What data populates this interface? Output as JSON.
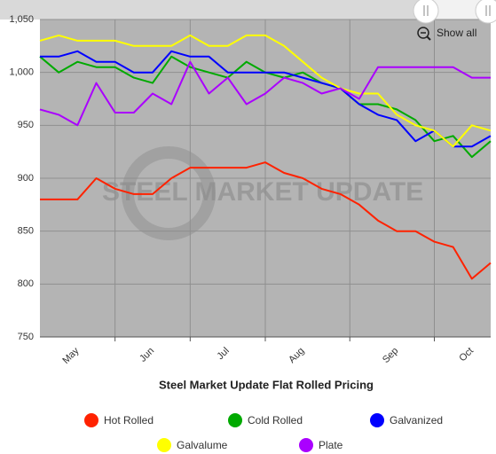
{
  "chart_data": {
    "type": "line",
    "title": "Steel Market Update Flat Rolled Pricing",
    "watermark": "STEEL MARKET UPDATE",
    "button": "Show all",
    "categories": [
      null,
      null,
      "May",
      null,
      null,
      null,
      "Jun",
      null,
      null,
      null,
      "Jul",
      null,
      null,
      null,
      "Aug",
      null,
      null,
      null,
      null,
      "Sep",
      null,
      null,
      null,
      "Oct",
      null
    ],
    "series": [
      {
        "name": "Hot Rolled",
        "color": "#ff2200",
        "values": [
          880,
          880,
          880,
          900,
          890,
          885,
          885,
          900,
          910,
          910,
          910,
          910,
          915,
          905,
          900,
          890,
          885,
          875,
          860,
          850,
          850,
          840,
          835,
          805,
          820
        ]
      },
      {
        "name": "Cold Rolled",
        "color": "#00aa00",
        "values": [
          1015,
          1000,
          1010,
          1005,
          1005,
          995,
          990,
          1015,
          1005,
          1000,
          995,
          1010,
          1000,
          995,
          1000,
          990,
          985,
          970,
          970,
          965,
          955,
          935,
          940,
          920,
          935
        ]
      },
      {
        "name": "Galvanized",
        "color": "#0000ff",
        "values": [
          1015,
          1015,
          1020,
          1010,
          1010,
          1000,
          1000,
          1020,
          1015,
          1015,
          1000,
          1000,
          1000,
          1000,
          995,
          990,
          985,
          970,
          960,
          955,
          935,
          945,
          930,
          930,
          940
        ]
      },
      {
        "name": "Galvalume",
        "color": "#ffff00",
        "values": [
          1030,
          1035,
          1030,
          1030,
          1030,
          1025,
          1025,
          1025,
          1035,
          1025,
          1025,
          1035,
          1035,
          1025,
          1010,
          995,
          985,
          980,
          980,
          960,
          950,
          945,
          930,
          950,
          945
        ]
      },
      {
        "name": "Plate",
        "color": "#aa00ff",
        "values": [
          965,
          960,
          950,
          990,
          962,
          962,
          980,
          970,
          1010,
          980,
          995,
          970,
          980,
          995,
          990,
          980,
          985,
          975,
          1005,
          1005,
          1005,
          1005,
          1005,
          995,
          995
        ]
      }
    ],
    "ylim": [
      750,
      1050
    ],
    "yticks": [
      750,
      800,
      850,
      900,
      950,
      {
        "value": 1000,
        "label": "1,000"
      },
      {
        "value": 1050,
        "label": "1,050"
      }
    ],
    "grid": true
  }
}
